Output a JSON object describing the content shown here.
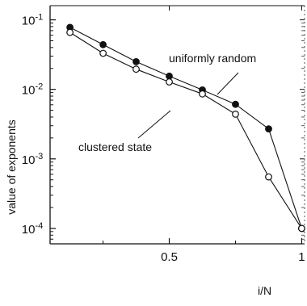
{
  "chart_data": {
    "type": "line",
    "title": "",
    "xlabel": "i/N",
    "ylabel": "value of exponents",
    "xlim": [
      0.05,
      1.02
    ],
    "ylim": [
      6e-05,
      0.16
    ],
    "yscale": "log",
    "grid": false,
    "legend": "none",
    "x_ticks": [
      {
        "value": 0.5,
        "label": "0.5"
      },
      {
        "value": 1.0,
        "label": "1"
      }
    ],
    "y_ticks": [
      {
        "value": 0.1,
        "base": "10",
        "exp": "-1"
      },
      {
        "value": 0.01,
        "base": "10",
        "exp": "-2"
      },
      {
        "value": 0.001,
        "base": "10",
        "exp": "-3"
      },
      {
        "value": 0.0001,
        "base": "10",
        "exp": "-4"
      }
    ],
    "series": [
      {
        "name": "uniformly random",
        "marker": "filled-circle",
        "color": "#111111",
        "x": [
          0.125,
          0.25,
          0.375,
          0.5,
          0.625,
          0.75,
          0.875,
          1.0
        ],
        "y": [
          0.078,
          0.044,
          0.025,
          0.0155,
          0.0098,
          0.0061,
          0.0027,
          0.0001
        ]
      },
      {
        "name": "clustered state",
        "marker": "open-circle",
        "color": "#111111",
        "x": [
          0.125,
          0.25,
          0.375,
          0.5,
          0.625,
          0.75,
          0.875,
          1.0
        ],
        "y": [
          0.066,
          0.033,
          0.0195,
          0.0128,
          0.0086,
          0.0044,
          0.00055,
          0.0001
        ]
      }
    ],
    "annotations": [
      {
        "text": "uniformly random",
        "series": 0
      },
      {
        "text": "clustered state",
        "series": 1
      }
    ]
  }
}
